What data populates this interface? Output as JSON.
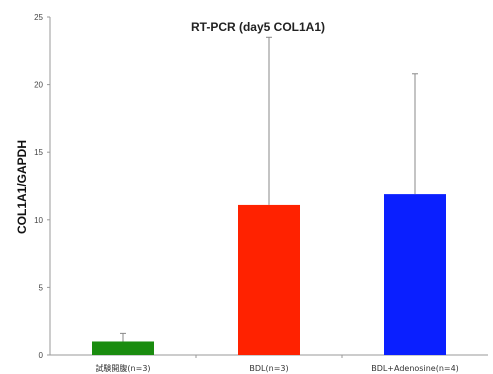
{
  "chart_data": {
    "type": "bar",
    "title": "RT-PCR (day5 COL1A1)",
    "ylabel": "COL1A1/GAPDH",
    "xlabel": "",
    "ylim": [
      0,
      25
    ],
    "yticks": [
      0,
      5,
      10,
      15,
      20,
      25
    ],
    "categories": [
      "試験開腹(n=3)",
      "BDL(n=3)",
      "BDL+Adenosine(n=4)"
    ],
    "values": [
      1.0,
      11.1,
      11.9
    ],
    "errors": [
      0.6,
      12.4,
      8.9
    ],
    "colors": [
      "#1a8c0f",
      "#ff2200",
      "#0a1fff"
    ],
    "grid": false,
    "legend": "none"
  }
}
